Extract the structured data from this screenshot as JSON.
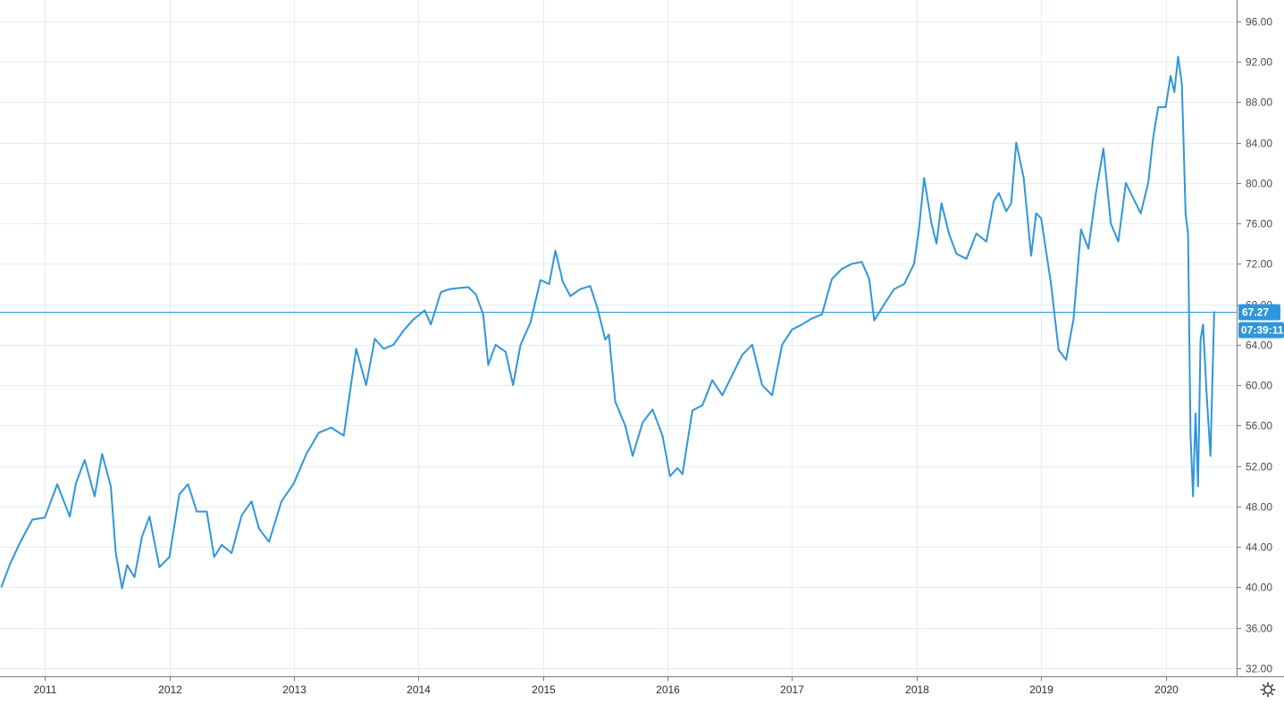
{
  "chart_data": {
    "type": "line",
    "title": "",
    "xlabel": "",
    "ylabel": "",
    "x_tick_labels": [
      "2011",
      "2012",
      "2013",
      "2014",
      "2015",
      "2016",
      "2017",
      "2018",
      "2019",
      "2020"
    ],
    "y_tick_labels": [
      "32.00",
      "36.00",
      "40.00",
      "44.00",
      "48.00",
      "52.00",
      "56.00",
      "60.00",
      "64.00",
      "68.00",
      "72.00",
      "76.00",
      "80.00",
      "84.00",
      "88.00",
      "92.00",
      "96.00"
    ],
    "xlim": [
      2010.64,
      2020.57
    ],
    "ylim": [
      31.2,
      98.1
    ],
    "grid": true,
    "series": [
      {
        "color": "#2f96db",
        "x": [
          2010.65,
          2010.72,
          2010.8,
          2010.9,
          2011.0,
          2011.1,
          2011.2,
          2011.25,
          2011.32,
          2011.4,
          2011.46,
          2011.53,
          2011.57,
          2011.62,
          2011.66,
          2011.72,
          2011.78,
          2011.84,
          2011.92,
          2012.0,
          2012.08,
          2012.15,
          2012.22,
          2012.3,
          2012.36,
          2012.42,
          2012.5,
          2012.58,
          2012.66,
          2012.72,
          2012.8,
          2012.9,
          2013.0,
          2013.1,
          2013.2,
          2013.3,
          2013.4,
          2013.5,
          2013.58,
          2013.65,
          2013.72,
          2013.8,
          2013.88,
          2013.96,
          2014.05,
          2014.1,
          2014.18,
          2014.25,
          2014.32,
          2014.4,
          2014.46,
          2014.52,
          2014.56,
          2014.62,
          2014.7,
          2014.76,
          2014.82,
          2014.9,
          2014.98,
          2015.05,
          2015.1,
          2015.16,
          2015.22,
          2015.3,
          2015.38,
          2015.44,
          2015.5,
          2015.53,
          2015.58,
          2015.66,
          2015.72,
          2015.8,
          2015.88,
          2015.96,
          2016.02,
          2016.08,
          2016.12,
          2016.2,
          2016.28,
          2016.36,
          2016.44,
          2016.52,
          2016.6,
          2016.68,
          2016.76,
          2016.84,
          2016.92,
          2017.0,
          2017.08,
          2017.16,
          2017.24,
          2017.32,
          2017.4,
          2017.48,
          2017.56,
          2017.62,
          2017.66,
          2017.74,
          2017.82,
          2017.9,
          2017.98,
          2018.02,
          2018.06,
          2018.12,
          2018.16,
          2018.2,
          2018.26,
          2018.32,
          2018.4,
          2018.48,
          2018.56,
          2018.62,
          2018.66,
          2018.72,
          2018.76,
          2018.8,
          2018.86,
          2018.92,
          2018.96,
          2019.0,
          2019.08,
          2019.14,
          2019.2,
          2019.26,
          2019.32,
          2019.38,
          2019.44,
          2019.5,
          2019.56,
          2019.62,
          2019.68,
          2019.74,
          2019.8,
          2019.86,
          2019.9,
          2019.94,
          2020.0,
          2020.04,
          2020.07,
          2020.1,
          2020.13,
          2020.16,
          2020.18,
          2020.2,
          2020.22,
          2020.24,
          2020.26,
          2020.28,
          2020.3,
          2020.33,
          2020.36,
          2020.39
        ],
        "values": [
          40.0,
          42.3,
          44.4,
          46.7,
          46.9,
          50.2,
          47.0,
          50.3,
          52.6,
          49.0,
          53.2,
          50.0,
          43.4,
          39.9,
          42.2,
          41.0,
          45.0,
          47.0,
          42.0,
          43.0,
          49.2,
          50.2,
          47.5,
          47.5,
          43.0,
          44.2,
          43.4,
          47.1,
          48.5,
          45.8,
          44.5,
          48.5,
          50.3,
          53.2,
          55.3,
          55.8,
          55.0,
          63.6,
          60.0,
          64.6,
          63.6,
          64.0,
          65.4,
          66.5,
          67.4,
          66.0,
          69.2,
          69.5,
          69.6,
          69.7,
          69.0,
          67.0,
          62.0,
          64.0,
          63.3,
          60.0,
          64.0,
          66.2,
          70.4,
          70.0,
          73.3,
          70.2,
          68.8,
          69.5,
          69.8,
          67.5,
          64.5,
          65.0,
          58.4,
          56.0,
          53.0,
          56.3,
          57.6,
          55.0,
          51.0,
          51.8,
          51.2,
          57.5,
          58.0,
          60.5,
          59.0,
          61.0,
          63.0,
          64.0,
          60.0,
          59.0,
          64.0,
          65.5,
          66.0,
          66.6,
          67.0,
          70.5,
          71.5,
          72.0,
          72.2,
          70.5,
          66.4,
          68.0,
          69.5,
          70.0,
          72.0,
          75.5,
          80.5,
          76.0,
          74.0,
          78.0,
          75.0,
          73.0,
          72.5,
          75.0,
          74.2,
          78.2,
          79.0,
          77.2,
          78.0,
          84.0,
          80.5,
          72.8,
          77.0,
          76.5,
          70.0,
          63.5,
          62.5,
          66.5,
          75.4,
          73.5,
          79.0,
          83.4,
          76.0,
          74.2,
          80.0,
          78.5,
          77.0,
          80.0,
          84.5,
          87.5,
          87.5,
          90.6,
          89.0,
          92.5,
          89.8,
          76.9,
          75.0,
          55.0,
          49.0,
          57.2,
          50.0,
          64.5,
          66.0,
          59.0,
          53.0,
          67.3
        ]
      }
    ],
    "last_value_label": "67.27",
    "last_value": 67.27,
    "countdown_label": "07:39:11"
  },
  "colors": {
    "series": "#2f96db",
    "grid": "#e3edf2",
    "badge": "#2f96db"
  },
  "icons": {
    "settings": "gear-icon"
  }
}
